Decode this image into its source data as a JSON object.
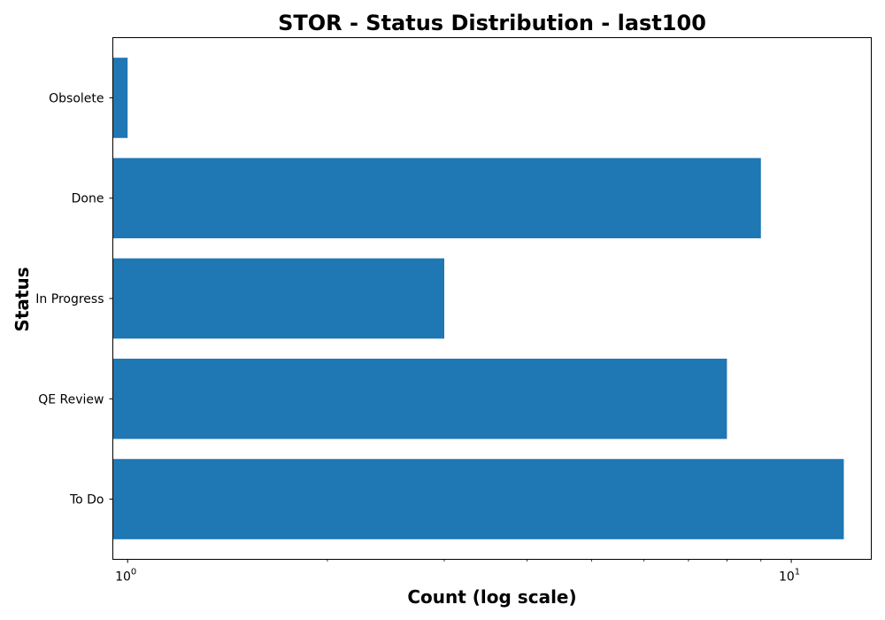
{
  "chart_data": {
    "type": "bar",
    "orientation": "horizontal",
    "title": "STOR - Status Distribution - last100",
    "xlabel": "Count (log scale)",
    "ylabel": "Status",
    "x_scale": "log",
    "xlim": [
      0.95,
      13.2
    ],
    "categories": [
      "To Do",
      "QE Review",
      "In Progress",
      "Done",
      "Obsolete"
    ],
    "values": [
      12,
      8,
      3,
      9,
      1
    ],
    "x_ticks": [
      {
        "base": "10",
        "exp": "0",
        "value": 1
      },
      {
        "base": "10",
        "exp": "1",
        "value": 10
      }
    ],
    "bar_color": "#1f77b4",
    "grid": false,
    "legend": "none"
  }
}
